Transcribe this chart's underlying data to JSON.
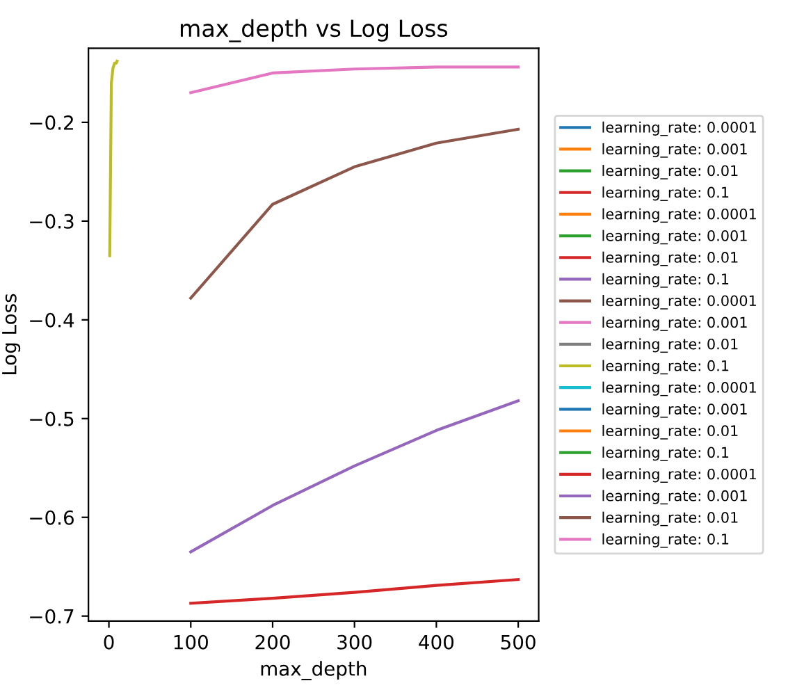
{
  "chart_data": {
    "type": "line",
    "title": "max_depth vs Log Loss",
    "xlabel": "max_depth",
    "ylabel": "Log Loss",
    "xlim": [
      -25,
      525
    ],
    "xticks": [
      0,
      100,
      200,
      300,
      400,
      500
    ],
    "ylim": [
      -0.705,
      -0.125
    ],
    "yticks": [
      {
        "value": -0.7,
        "label": "−0.7"
      },
      {
        "value": -0.6,
        "label": "−0.6"
      },
      {
        "value": -0.5,
        "label": "−0.5"
      },
      {
        "value": -0.4,
        "label": "−0.4"
      },
      {
        "value": -0.3,
        "label": "−0.3"
      },
      {
        "value": -0.2,
        "label": "−0.2"
      }
    ],
    "grid": false,
    "legend": "right",
    "line_style": "solid",
    "series": [
      {
        "name": "learning_rate: 0.0001",
        "color": "#1f77b4"
      },
      {
        "name": "learning_rate: 0.001",
        "color": "#ff7f0e"
      },
      {
        "name": "learning_rate: 0.01",
        "color": "#2ca02c"
      },
      {
        "name": "learning_rate: 0.1",
        "color": "#d62728"
      },
      {
        "name": "learning_rate: 0.0001",
        "color": "#ff7f0e"
      },
      {
        "name": "learning_rate: 0.001",
        "color": "#2ca02c"
      },
      {
        "name": "learning_rate: 0.01",
        "color": "#d62728"
      },
      {
        "name": "learning_rate: 0.1",
        "color": "#9467bd"
      },
      {
        "name": "learning_rate: 0.0001",
        "color": "#8c564b"
      },
      {
        "name": "learning_rate: 0.001",
        "color": "#e377c2"
      },
      {
        "name": "learning_rate: 0.01",
        "color": "#7f7f7f"
      },
      {
        "name": "learning_rate: 0.1",
        "color": "#bcbd22",
        "x": [
          1,
          3,
          5,
          7,
          9,
          10
        ],
        "values": [
          -0.335,
          -0.16,
          -0.145,
          -0.14,
          -0.14,
          -0.138
        ]
      },
      {
        "name": "learning_rate: 0.0001",
        "color": "#17becf"
      },
      {
        "name": "learning_rate: 0.001",
        "color": "#1f77b4"
      },
      {
        "name": "learning_rate: 0.01",
        "color": "#ff7f0e"
      },
      {
        "name": "learning_rate: 0.1",
        "color": "#2ca02c"
      },
      {
        "name": "learning_rate: 0.0001",
        "color": "#d62728",
        "x": [
          100,
          200,
          300,
          400,
          500
        ],
        "values": [
          -0.687,
          -0.682,
          -0.676,
          -0.669,
          -0.663
        ]
      },
      {
        "name": "learning_rate: 0.001",
        "color": "#9467bd",
        "x": [
          100,
          200,
          300,
          400,
          500
        ],
        "values": [
          -0.635,
          -0.588,
          -0.548,
          -0.512,
          -0.482
        ]
      },
      {
        "name": "learning_rate: 0.01",
        "color": "#8c564b",
        "x": [
          100,
          200,
          300,
          400,
          500
        ],
        "values": [
          -0.378,
          -0.283,
          -0.245,
          -0.221,
          -0.207
        ]
      },
      {
        "name": "learning_rate: 0.1",
        "color": "#e377c2",
        "x": [
          100,
          200,
          300,
          400,
          500
        ],
        "values": [
          -0.17,
          -0.15,
          -0.146,
          -0.144,
          -0.144
        ]
      }
    ]
  }
}
